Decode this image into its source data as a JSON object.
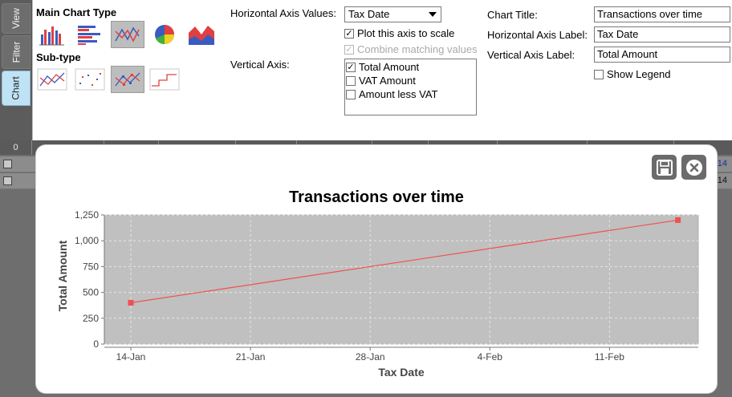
{
  "side_tabs": [
    "View",
    "Filter",
    "Chart"
  ],
  "main_chart_type": {
    "label": "Main Chart Type",
    "options": [
      "bar-chart-icon",
      "horizontal-bar-chart-icon",
      "line-chart-icon",
      "pie-chart-icon",
      "area-chart-icon"
    ],
    "selected": "line-chart-icon"
  },
  "sub_type": {
    "label": "Sub-type",
    "options": [
      "line-subtype-icon",
      "scatter-subtype-icon",
      "line-marker-subtype-icon",
      "step-subtype-icon"
    ],
    "selected": "line-marker-subtype-icon"
  },
  "horizontal_axis": {
    "label": "Horizontal Axis Values:",
    "value": "Tax Date",
    "plot_to_scale_label": "Plot this axis to scale",
    "plot_to_scale_checked": true,
    "combine_label": "Combine matching values",
    "combine_checked": true
  },
  "vertical_axis": {
    "label": "Vertical Axis:",
    "items": [
      {
        "label": "Total Amount",
        "checked": true
      },
      {
        "label": "VAT Amount",
        "checked": false
      },
      {
        "label": "Amount less VAT",
        "checked": false
      }
    ]
  },
  "titles": {
    "chart_title_label": "Chart Title:",
    "chart_title_value": "Transactions over time",
    "h_axis_label_label": "Horizontal Axis Label:",
    "h_axis_label_value": "Tax Date",
    "v_axis_label_label": "Vertical Axis Label:",
    "v_axis_label_value": "Total Amount",
    "show_legend_label": "Show Legend",
    "show_legend_checked": false
  },
  "table": {
    "header_first": "0",
    "row_tail_1": "14",
    "row_tail_2": "14"
  },
  "colors": {
    "series": "#f05050",
    "plot_bg": "#c0c0c0",
    "selected_tab": "#bfe3f5"
  },
  "chart_data": {
    "type": "line",
    "title": "Transactions over time",
    "xlabel": "Tax Date",
    "ylabel": "Total Amount",
    "x_ticks": [
      "14-Jan",
      "21-Jan",
      "28-Jan",
      "4-Feb",
      "11-Feb"
    ],
    "y_ticks": [
      "0",
      "250",
      "500",
      "750",
      "1,000",
      "1,250"
    ],
    "ylim": [
      0,
      1250
    ],
    "grid": true,
    "legend": false,
    "series": [
      {
        "points": [
          {
            "x": "14-Jan",
            "y": 400
          },
          {
            "x": "15-Feb",
            "y": 1200
          }
        ]
      }
    ]
  }
}
